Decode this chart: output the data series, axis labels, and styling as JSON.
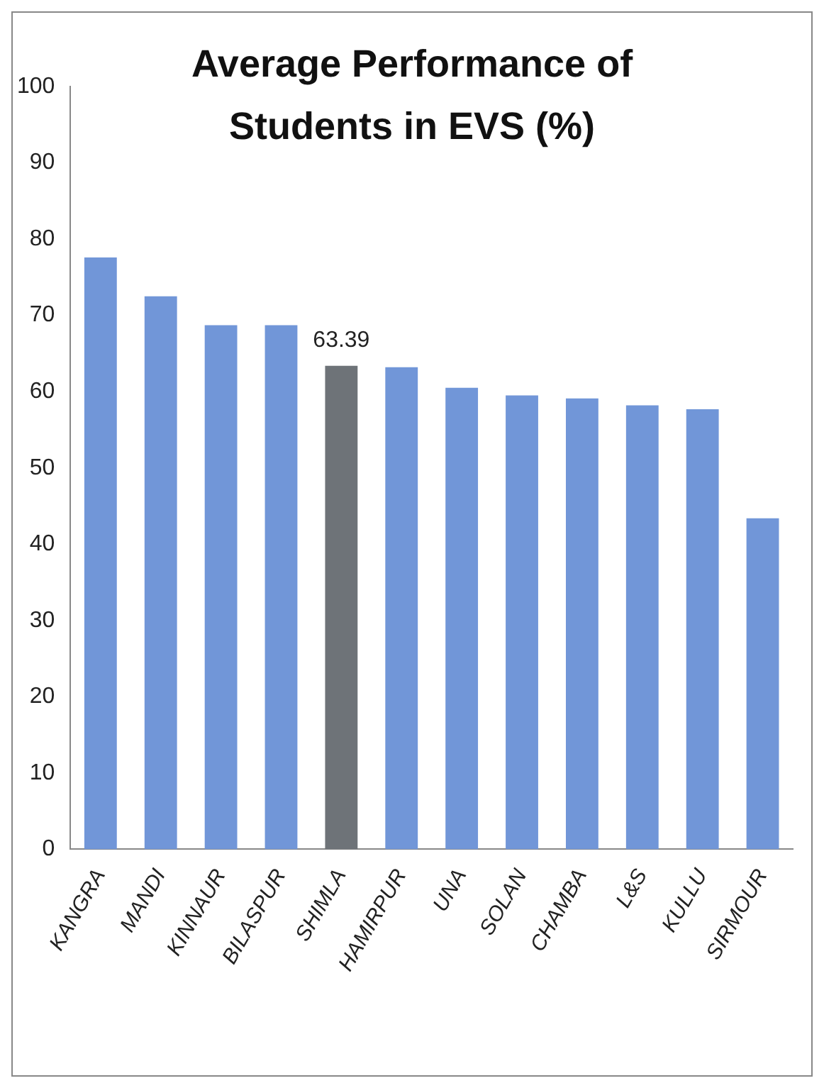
{
  "chart_data": {
    "type": "bar",
    "title": "Average Performance of Students in EVS (%)",
    "categories": [
      "KANGRA",
      "MANDI",
      "KINNAUR",
      "BILASPUR",
      "SHIMLA",
      "HAMIRPUR",
      "UNA",
      "SOLAN",
      "CHAMBA",
      "L&S",
      "KULLU",
      "SIRMOUR"
    ],
    "values": [
      77.6,
      72.5,
      68.7,
      68.7,
      63.39,
      63.2,
      60.5,
      59.5,
      59.1,
      58.2,
      57.7,
      43.4
    ],
    "colors": [
      "#7196d8",
      "#7196d8",
      "#7196d8",
      "#7196d8",
      "#6e7378",
      "#7196d8",
      "#7196d8",
      "#7196d8",
      "#7196d8",
      "#7196d8",
      "#7196d8",
      "#7196d8"
    ],
    "value_labels": [
      null,
      null,
      null,
      null,
      "63.39",
      null,
      null,
      null,
      null,
      null,
      null,
      null
    ],
    "ylim": [
      0,
      100
    ],
    "yticks": [
      0,
      10,
      20,
      30,
      40,
      50,
      60,
      70,
      80,
      90,
      100
    ],
    "grid": false,
    "legend": false
  }
}
